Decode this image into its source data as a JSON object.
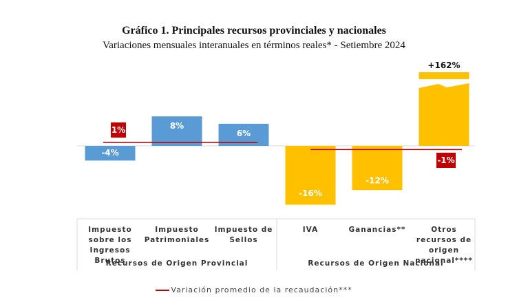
{
  "chart_data": {
    "type": "bar",
    "title": "Gráfico 1. Principales recursos provinciales y nacionales",
    "subtitle": "Variaciones mensuales interanuales en términos reales* - Setiembre 2024",
    "categories": [
      "Impuesto sobre los Ingresos Brutos",
      "Impuesto Patrimoniales",
      "Impuesto de Sellos",
      "IVA",
      "Ganancias**",
      "Otros recursos de origen nacional****"
    ],
    "values": [
      -4,
      8,
      6,
      -16,
      -12,
      162
    ],
    "value_labels": [
      "-4%",
      "8%",
      "6%",
      "-16%",
      "-12%",
      "+162%"
    ],
    "bar_colors": [
      "#5b9bd5",
      "#5b9bd5",
      "#5b9bd5",
      "#ffc000",
      "#ffc000",
      "#ffc000"
    ],
    "axis_break": {
      "category": "Otros recursos de origen nacional****",
      "note": "bar truncated with axis break"
    },
    "groups": [
      {
        "name": "Recursos de Origen Provincial",
        "categories": [
          "Impuesto sobre los Ingresos Brutos",
          "Impuesto Patrimoniales",
          "Impuesto de Sellos"
        ],
        "average": 1,
        "average_label": "1%"
      },
      {
        "name": "Recursos de Origen Nacional",
        "categories": [
          "IVA",
          "Ganancias**",
          "Otros recursos de origen nacional****"
        ],
        "average": -1,
        "average_label": "-1%"
      }
    ],
    "average_line_color": "#c00000",
    "legend": [
      {
        "label": "Variación promedio de la recaudación***",
        "color": "#c00000",
        "kind": "line"
      }
    ],
    "legend_position": "bottom",
    "ylim": [
      -16,
      10
    ],
    "grid": false
  }
}
